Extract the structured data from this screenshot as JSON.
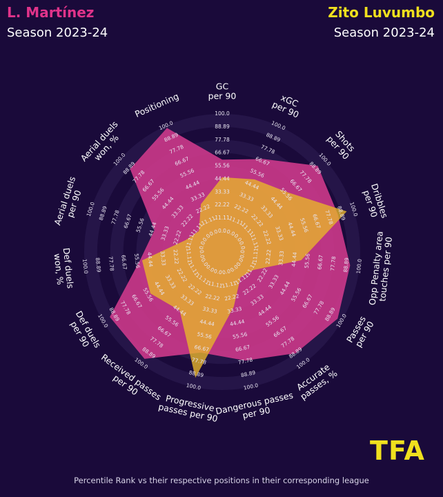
{
  "header": {
    "player1": {
      "name": "L. Martínez",
      "season": "Season 2023-24",
      "color": "#e0338a"
    },
    "player2": {
      "name": "Zito Luvumbo",
      "season": "Season 2023-24",
      "color": "#f0e01e"
    }
  },
  "footer": "Percentile Rank vs their respective positions in their corresponding league",
  "logo": {
    "text": "TFA",
    "color": "#f0e01e"
  },
  "colors": {
    "background": "#1a0a3a",
    "ring": "#251548",
    "player1_fill": "#d23a8c",
    "player2_fill": "#e7b42c"
  },
  "chart_data": {
    "type": "radar",
    "range": [
      0,
      100
    ],
    "ring_values": [
      0.0,
      11.11,
      22.22,
      33.33,
      44.44,
      55.56,
      66.67,
      77.78,
      88.89,
      100.0
    ],
    "axes": [
      [
        "GC",
        "per 90"
      ],
      [
        "xGC",
        "per 90"
      ],
      [
        "Shots",
        "per 90"
      ],
      [
        "Dribbles",
        "per 90"
      ],
      [
        "Opp Penalty area",
        "touches per 90"
      ],
      [
        "Passes",
        "per 90"
      ],
      [
        "Accurate",
        "passes, %"
      ],
      [
        "Dangerous passes",
        "per 90"
      ],
      [
        "Progressive",
        "passes per 90"
      ],
      [
        "Received passes",
        "per 90"
      ],
      [
        "Def duels",
        "per 90"
      ],
      [
        "Def duels",
        "won, %"
      ],
      [
        "Aerial duels",
        "per 90"
      ],
      [
        "Aerial duels",
        "won, %"
      ],
      [
        "Positioning"
      ]
    ],
    "series": [
      {
        "name": "L. Martínez",
        "values": [
          61,
          69,
          92,
          86,
          92,
          96,
          89,
          77,
          70,
          95,
          93,
          53,
          43,
          88,
          98
        ]
      },
      {
        "name": "Zito Luvumbo",
        "values": [
          46,
          50,
          58,
          94,
          50,
          13,
          9,
          30,
          92,
          44,
          53,
          51,
          15,
          9,
          27
        ]
      }
    ]
  }
}
